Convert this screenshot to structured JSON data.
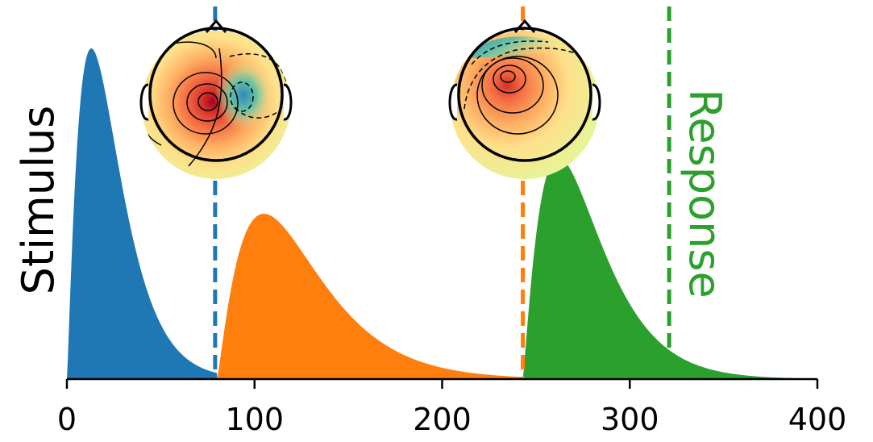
{
  "chart_data": {
    "type": "area",
    "xlim": [
      0,
      400
    ],
    "xticks": [
      "0",
      "100",
      "200",
      "300",
      "400"
    ],
    "grid": false,
    "yaxis_visible": false,
    "side_labels": {
      "left": "Stimulus",
      "right": "Response"
    },
    "series": [
      {
        "shape": "gamma-like",
        "start": 0,
        "peak_x": 13,
        "end": 80,
        "peak_height": 1.0,
        "color": "#1f77b4"
      },
      {
        "shape": "gamma-like",
        "start": 80,
        "peak_x": 105,
        "end": 243,
        "peak_height": 0.5,
        "color": "#ff7f0e"
      },
      {
        "shape": "gamma-like",
        "start": 243,
        "peak_x": 262,
        "end": 400,
        "peak_height": 0.67,
        "color": "#2ca02c"
      }
    ],
    "vlines": [
      {
        "x": 79,
        "color": "#1f77b4",
        "style": "dashed"
      },
      {
        "x": 243,
        "color": "#ff7f0e",
        "style": "dashed"
      },
      {
        "x": 321,
        "color": "#2ca02c",
        "style": "dashed"
      }
    ],
    "topomaps": [
      {
        "attached_to_x": 79,
        "hotspot": "left-central",
        "cold_spot": "right"
      },
      {
        "attached_to_x": 243,
        "hotspot": "frontal-left",
        "cold_spot": "frontal-edge"
      }
    ],
    "colors": {
      "stimulus": "#000000",
      "response": "#2ca02c",
      "axis": "#000000"
    }
  }
}
